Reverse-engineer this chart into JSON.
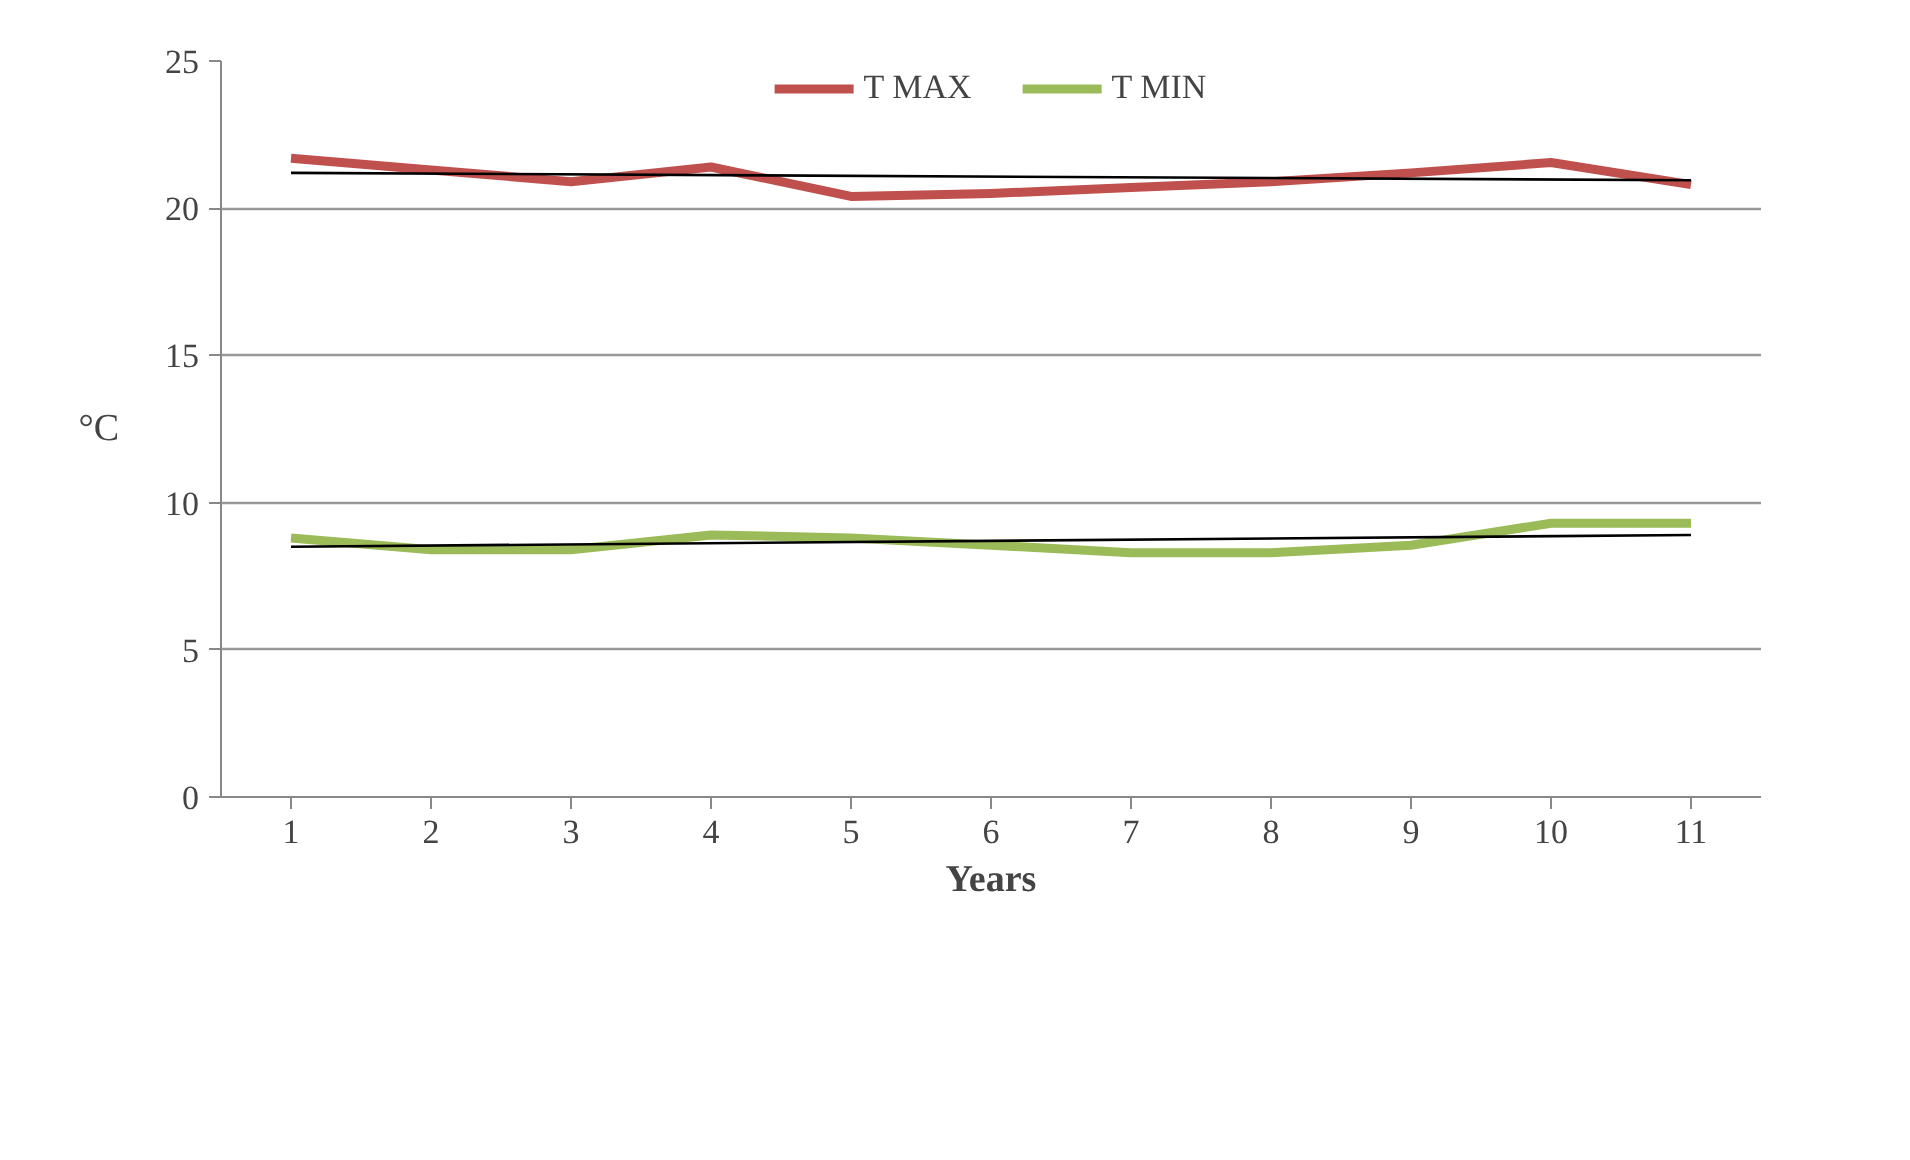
{
  "chart_data": {
    "type": "line",
    "xlabel": "Years",
    "ylabel": "°C",
    "categories": [
      "1",
      "2",
      "3",
      "4",
      "5",
      "6",
      "7",
      "8",
      "9",
      "10",
      "11"
    ],
    "series": [
      {
        "name": "T MAX",
        "color": "#c0504d",
        "values": [
          21.7,
          21.3,
          20.9,
          21.4,
          20.4,
          20.5,
          20.7,
          20.9,
          21.2,
          21.55,
          20.8
        ]
      },
      {
        "name": "T MIN",
        "color": "#9bbb59",
        "values": [
          8.8,
          8.4,
          8.4,
          8.9,
          8.8,
          8.55,
          8.3,
          8.3,
          8.55,
          9.3,
          9.3
        ]
      },
      {
        "type": "line",
        "color": "#000000",
        "x": [
          "1",
          "11"
        ],
        "values": [
          21.2,
          20.95
        ]
      },
      {
        "type": "line",
        "color": "#000000",
        "x": [
          "1",
          "11"
        ],
        "values": [
          8.5,
          8.9
        ]
      }
    ],
    "ylim": [
      0,
      25
    ],
    "yticks": [
      0,
      5,
      10,
      15,
      20,
      25
    ],
    "grid": "y",
    "legend": "top",
    "marker": "none",
    "line_style": "solid"
  }
}
